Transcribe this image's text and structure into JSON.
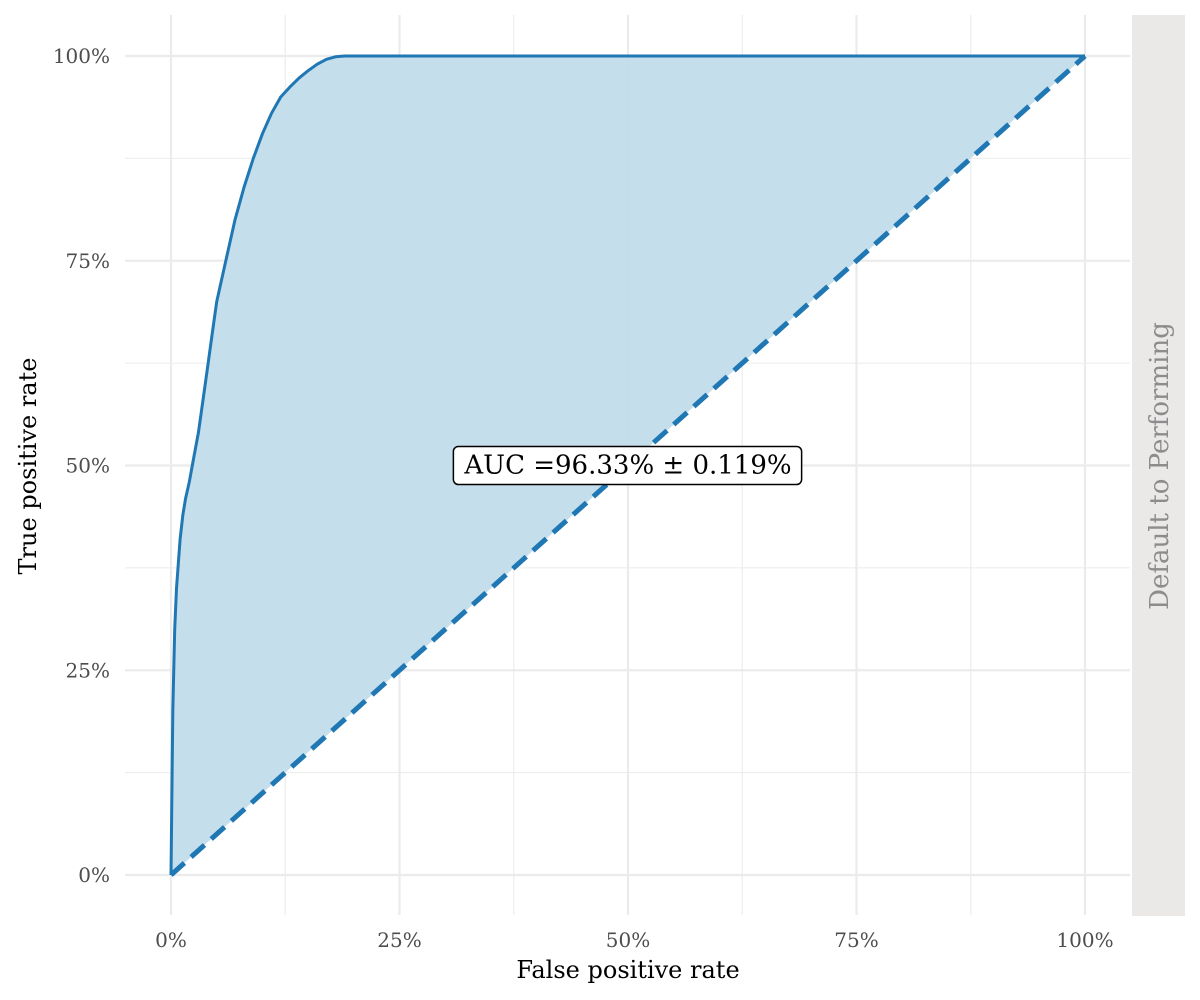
{
  "chart_data": {
    "type": "area",
    "title": "",
    "xlabel": "False positive rate",
    "ylabel": "True positive rate",
    "xlim": [
      0,
      1
    ],
    "ylim": [
      0,
      1
    ],
    "xticks": [
      0,
      0.25,
      0.5,
      0.75,
      1
    ],
    "xtick_labels": [
      "0%",
      "25%",
      "50%",
      "75%",
      "100%"
    ],
    "yticks": [
      0,
      0.25,
      0.5,
      0.75,
      1
    ],
    "ytick_labels": [
      "0%",
      "25%",
      "50%",
      "75%",
      "100%"
    ],
    "grid": true,
    "facet_label": "Default to Performing",
    "annotation": {
      "text": "AUC =96.33% ± 0.119%",
      "x": 0.5,
      "y": 0.5
    },
    "colors": {
      "curve": "#1f77b4",
      "fill": "#c1dceb",
      "diagonal": "#1f77b4",
      "strip": "#ebe8e8",
      "grid": "#ebebeb"
    },
    "series": [
      {
        "kind": "roc-curve",
        "x": [
          0,
          0.001,
          0.002,
          0.004,
          0.006,
          0.008,
          0.01,
          0.013,
          0.016,
          0.02,
          0.025,
          0.03,
          0.035,
          0.04,
          0.045,
          0.05,
          0.06,
          0.07,
          0.08,
          0.09,
          0.1,
          0.11,
          0.12,
          0.13,
          0.14,
          0.15,
          0.16,
          0.17,
          0.18,
          0.19,
          0.2,
          1.0
        ],
        "y": [
          0,
          0.1,
          0.2,
          0.3,
          0.35,
          0.38,
          0.41,
          0.44,
          0.46,
          0.48,
          0.51,
          0.54,
          0.58,
          0.62,
          0.66,
          0.7,
          0.75,
          0.8,
          0.84,
          0.875,
          0.905,
          0.93,
          0.95,
          0.962,
          0.973,
          0.982,
          0.99,
          0.996,
          0.999,
          1.0,
          1.0,
          1.0
        ]
      },
      {
        "kind": "diagonal",
        "x": [
          0,
          1
        ],
        "y": [
          0,
          1
        ]
      }
    ]
  }
}
